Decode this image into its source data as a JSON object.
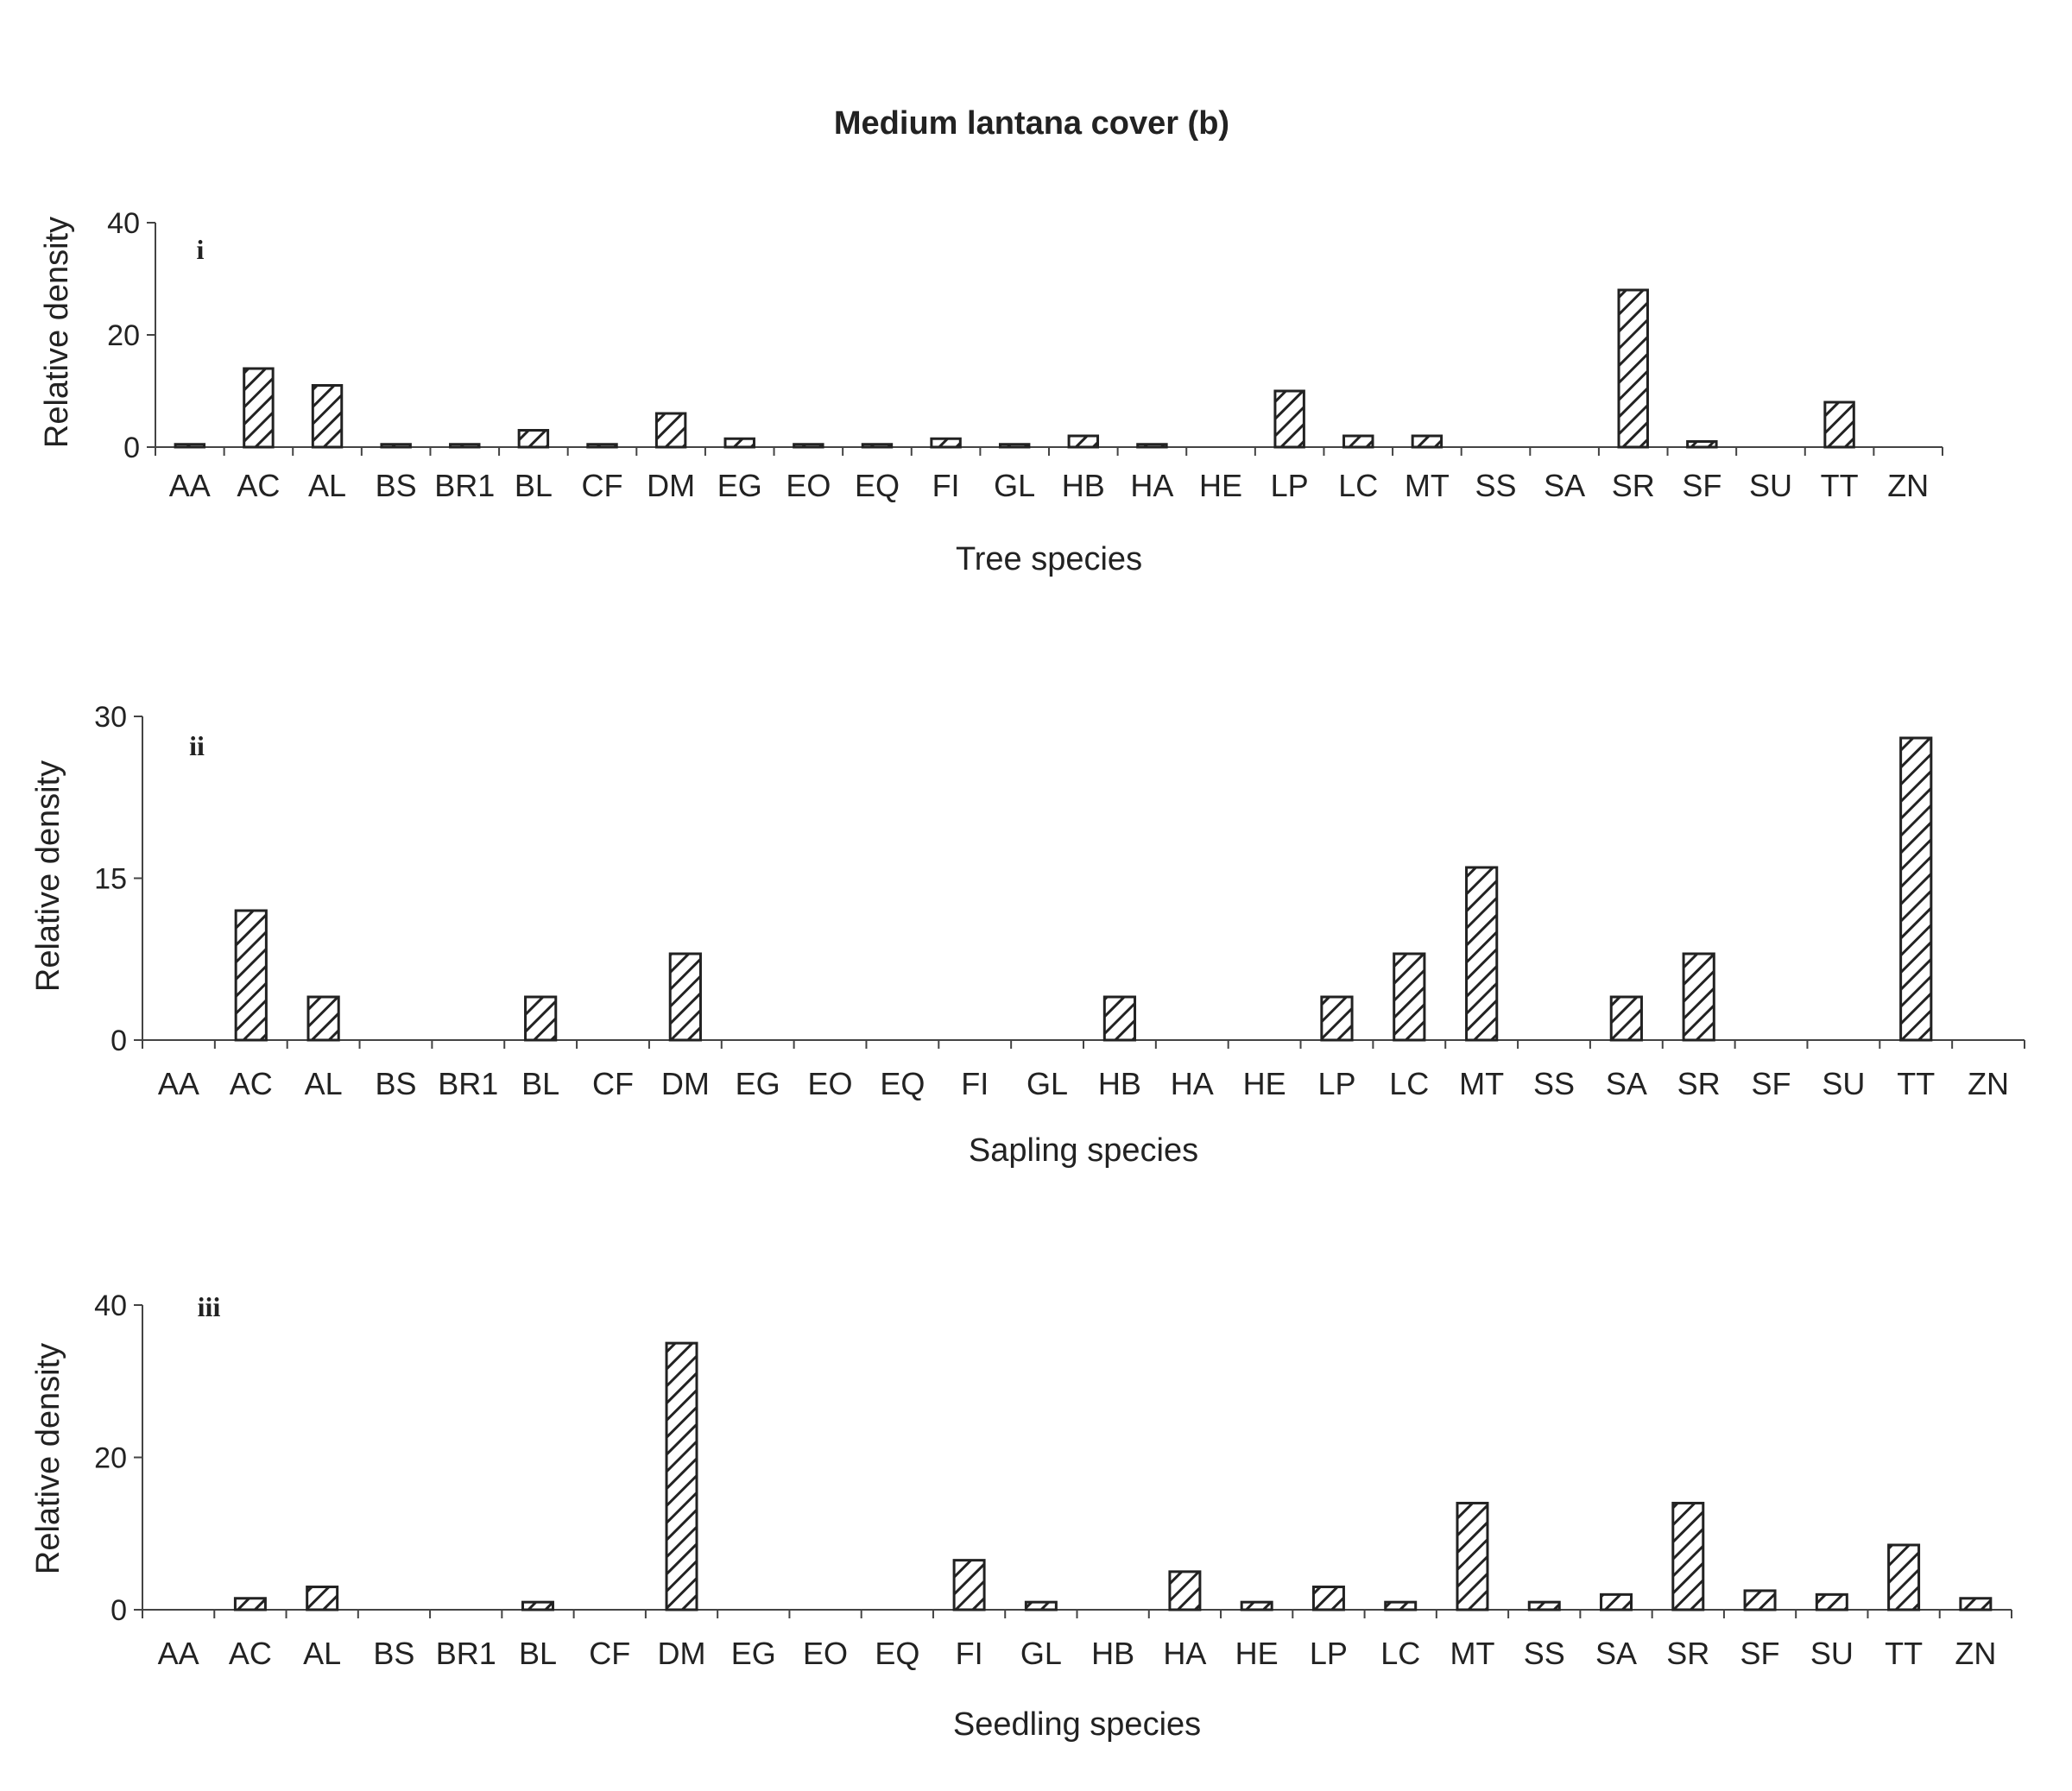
{
  "figure_title": "Medium lantana cover (b)",
  "colors": {
    "bar_stroke": "#222222",
    "hatch": "#222222",
    "background": "#ffffff"
  },
  "chart_data": [
    {
      "type": "bar",
      "panel_label": "i",
      "xlabel": "Tree species",
      "ylabel": "Relative density",
      "ylim": [
        0,
        40
      ],
      "yticks": [
        "0",
        "20",
        "40"
      ],
      "categories": [
        "AA",
        "AC",
        "AL",
        "BS",
        "BR1",
        "BL",
        "CF",
        "DM",
        "EG",
        "EO",
        "EQ",
        "FI",
        "GL",
        "HB",
        "HA",
        "HE",
        "LP",
        "LC",
        "MT",
        "SS",
        "SA",
        "SR",
        "SF",
        "SU",
        "TT",
        "ZN"
      ],
      "values": [
        0.5,
        14,
        11,
        0.5,
        0.5,
        3,
        0.5,
        6,
        1.5,
        0.5,
        0.5,
        1.5,
        0.5,
        2,
        0.5,
        0,
        10,
        2,
        2,
        0,
        0,
        28,
        1,
        0,
        8,
        0
      ],
      "pattern": "diagonal-hatch"
    },
    {
      "type": "bar",
      "panel_label": "ii",
      "xlabel": "Sapling species",
      "ylabel": "Relative density",
      "ylim": [
        0,
        30
      ],
      "yticks": [
        "0",
        "15",
        "30"
      ],
      "categories": [
        "AA",
        "AC",
        "AL",
        "BS",
        "BR1",
        "BL",
        "CF",
        "DM",
        "EG",
        "EO",
        "EQ",
        "FI",
        "GL",
        "HB",
        "HA",
        "HE",
        "LP",
        "LC",
        "MT",
        "SS",
        "SA",
        "SR",
        "SF",
        "SU",
        "TT",
        "ZN"
      ],
      "values": [
        0,
        12,
        4,
        0,
        0,
        4,
        0,
        8,
        0,
        0,
        0,
        0,
        0,
        4,
        0,
        0,
        4,
        8,
        16,
        0,
        4,
        8,
        0,
        0,
        28,
        0
      ],
      "pattern": "diagonal-hatch"
    },
    {
      "type": "bar",
      "panel_label": "iii",
      "xlabel": "Seedling species",
      "ylabel": "Relative density",
      "ylim": [
        0,
        40
      ],
      "yticks": [
        "0",
        "20",
        "40"
      ],
      "categories": [
        "AA",
        "AC",
        "AL",
        "BS",
        "BR1",
        "BL",
        "CF",
        "DM",
        "EG",
        "EO",
        "EQ",
        "FI",
        "GL",
        "HB",
        "HA",
        "HE",
        "LP",
        "LC",
        "MT",
        "SS",
        "SA",
        "SR",
        "SF",
        "SU",
        "TT",
        "ZN"
      ],
      "values": [
        0,
        1.5,
        3,
        0,
        0,
        1,
        0,
        35,
        0,
        0,
        0,
        6.5,
        1,
        0,
        5,
        1,
        3,
        1,
        14,
        1,
        2,
        14,
        2.5,
        2,
        8.5,
        1.5
      ],
      "pattern": "diagonal-hatch"
    }
  ]
}
